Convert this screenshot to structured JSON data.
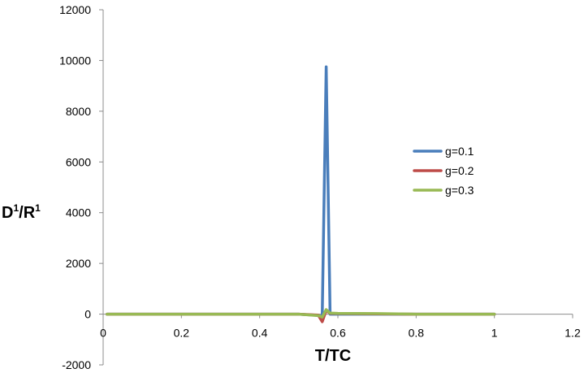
{
  "chart_data": {
    "type": "line",
    "title": "",
    "xlabel": "T/TC",
    "ylabel": {
      "base": "D",
      "sup1": "1",
      "mid": "/R",
      "sup2": "1"
    },
    "xlim": [
      0,
      1.2
    ],
    "ylim": [
      -2000,
      12000
    ],
    "x_ticks": [
      0,
      0.2,
      0.4,
      0.6,
      0.8,
      1,
      1.2
    ],
    "x_tick_labels": [
      "0",
      "0.2",
      "0.4",
      "0.6",
      "0.8",
      "1",
      "1.2"
    ],
    "y_ticks": [
      -2000,
      0,
      2000,
      4000,
      6000,
      8000,
      10000,
      12000
    ],
    "y_tick_labels": [
      "-2000",
      "0",
      "2000",
      "4000",
      "6000",
      "8000",
      "10000",
      "12000"
    ],
    "grid": false,
    "legend_position": "right",
    "series": [
      {
        "name": "g=0.1",
        "color": "#4a7ebb",
        "x": [
          0.01,
          0.1,
          0.2,
          0.3,
          0.4,
          0.5,
          0.55,
          0.56,
          0.57,
          0.58,
          0.6,
          0.7,
          0.8,
          0.9,
          1.0
        ],
        "y": [
          0,
          0,
          0,
          0,
          0,
          0,
          -50,
          -100,
          9750,
          0,
          0,
          0,
          0,
          0,
          0
        ]
      },
      {
        "name": "g=0.2",
        "color": "#be4b48",
        "x": [
          0.01,
          0.1,
          0.2,
          0.3,
          0.4,
          0.5,
          0.55,
          0.56,
          0.57,
          0.58,
          0.6,
          0.7,
          0.8,
          0.9,
          1.0
        ],
        "y": [
          0,
          0,
          0,
          0,
          0,
          0,
          -40,
          -300,
          150,
          30,
          20,
          10,
          0,
          0,
          0
        ]
      },
      {
        "name": "g=0.3",
        "color": "#98b954",
        "x": [
          0.01,
          0.1,
          0.2,
          0.3,
          0.4,
          0.5,
          0.55,
          0.56,
          0.57,
          0.58,
          0.6,
          0.7,
          0.8,
          0.9,
          1.0
        ],
        "y": [
          0,
          0,
          0,
          0,
          0,
          0,
          -60,
          -120,
          180,
          40,
          30,
          20,
          0,
          0,
          0
        ]
      }
    ]
  }
}
